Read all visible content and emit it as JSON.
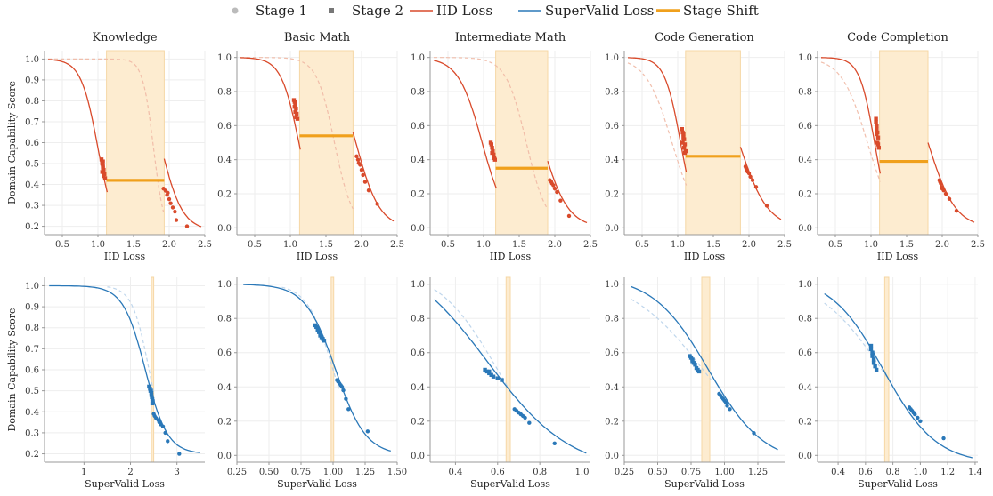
{
  "legend": [
    {
      "key": "stage1",
      "label": "Stage 1",
      "marker": "circle"
    },
    {
      "key": "stage2",
      "label": "Stage 2",
      "marker": "square"
    },
    {
      "key": "iid",
      "label": "IID Loss",
      "marker": "line"
    },
    {
      "key": "sv",
      "label": "SuperValid Loss",
      "marker": "line"
    },
    {
      "key": "shift",
      "label": "Stage Shift",
      "marker": "thickline"
    }
  ],
  "colors": {
    "iid": "#d94a2b",
    "iid_faint": "#f0b8a4",
    "sv": "#2a78b8",
    "sv_faint": "#b8d2ea",
    "shift": "#f0a01c",
    "band": "#fdecd0",
    "band_edge": "#f6d7a6",
    "stage_marker": "#bbbbbb",
    "stage2_marker": "#777777"
  },
  "chart_data": [
    {
      "type": "scatter",
      "title": "Knowledge",
      "xlabel": "IID Loss",
      "ylabel": "Domain Capability Score",
      "xlim": [
        0.25,
        2.5
      ],
      "ylim": [
        0.16,
        1.04
      ],
      "xticks": [
        0.5,
        1.0,
        1.5,
        2.0,
        2.5
      ],
      "xtick_labels": [
        "0.5",
        "1.0",
        "1.5",
        "2.0",
        "2.5"
      ],
      "yticks": [
        0.2,
        0.3,
        0.4,
        0.5,
        0.6,
        0.7,
        0.8,
        0.9,
        1.0
      ],
      "ytick_labels": [
        "0.2",
        "0.3",
        "0.4",
        "0.5",
        "0.6",
        "0.7",
        "0.8",
        "0.9",
        "1.0"
      ],
      "color": "iid",
      "faint_color": "iid_faint",
      "band": [
        1.12,
        1.93
      ],
      "shift": {
        "x": [
          1.12,
          1.93
        ],
        "y": 0.42
      },
      "curve1": {
        "x0": 0.3,
        "x1": 1.13,
        "lo": 0.15,
        "hi": 1.0,
        "mid": 1.0,
        "k": 8.4
      },
      "curve2": {
        "x0": 1.93,
        "x1": 2.45,
        "lo": 0.18,
        "hi": 1.0,
        "mid": 1.88,
        "k": 6.6
      },
      "ghost": {
        "x0": 0.3,
        "x1": 1.92,
        "lo": 0.15,
        "hi": 1.0,
        "mid": 1.78,
        "k": 13
      },
      "stage1": {
        "x": [
          1.92,
          1.95,
          1.97,
          1.98,
          2.0,
          2.02,
          2.05,
          2.08,
          2.1,
          2.25
        ],
        "y": [
          0.38,
          0.37,
          0.35,
          0.36,
          0.33,
          0.31,
          0.29,
          0.27,
          0.23,
          0.2
        ]
      },
      "stage2": {
        "x": [
          1.05,
          1.06,
          1.07,
          1.08,
          1.06,
          1.07,
          1.09,
          1.08,
          1.07,
          1.1
        ],
        "y": [
          0.52,
          0.5,
          0.49,
          0.47,
          0.46,
          0.48,
          0.45,
          0.44,
          0.51,
          0.43
        ]
      }
    },
    {
      "type": "scatter",
      "title": "Basic Math",
      "xlabel": "IID Loss",
      "ylabel": "",
      "xlim": [
        0.25,
        2.5
      ],
      "ylim": [
        -0.04,
        1.04
      ],
      "xticks": [
        0.5,
        1.0,
        1.5,
        2.0,
        2.5
      ],
      "xtick_labels": [
        "0.5",
        "1.0",
        "1.5",
        "2.0",
        "2.5"
      ],
      "yticks": [
        0.0,
        0.2,
        0.4,
        0.6,
        0.8,
        1.0
      ],
      "ytick_labels": [
        "0.0",
        "0.2",
        "0.4",
        "0.6",
        "0.8",
        "1.0"
      ],
      "color": "iid",
      "faint_color": "iid_faint",
      "band": [
        1.13,
        1.88
      ],
      "shift": {
        "x": [
          1.13,
          1.88
        ],
        "y": 0.54
      },
      "curve1": {
        "x0": 0.3,
        "x1": 1.14,
        "lo": 0.0,
        "hi": 1.0,
        "mid": 1.12,
        "k": 8.0
      },
      "curve2": {
        "x0": 1.88,
        "x1": 2.45,
        "lo": 0.0,
        "hi": 1.0,
        "mid": 1.92,
        "k": 6.0
      },
      "ghost": {
        "x0": 0.3,
        "x1": 1.88,
        "lo": 0.0,
        "hi": 1.0,
        "mid": 1.62,
        "k": 8.0
      },
      "stage1": {
        "x": [
          1.93,
          1.95,
          1.96,
          1.98,
          2.0,
          2.02,
          2.05,
          2.1,
          2.22
        ],
        "y": [
          0.42,
          0.4,
          0.38,
          0.37,
          0.34,
          0.31,
          0.27,
          0.22,
          0.14
        ]
      },
      "stage2": {
        "x": [
          1.05,
          1.06,
          1.07,
          1.07,
          1.08,
          1.06,
          1.09,
          1.08,
          1.07,
          1.1
        ],
        "y": [
          0.75,
          0.74,
          0.73,
          0.72,
          0.7,
          0.71,
          0.67,
          0.65,
          0.68,
          0.64
        ]
      }
    },
    {
      "type": "scatter",
      "title": "Intermediate Math",
      "xlabel": "IID Loss",
      "ylabel": "",
      "xlim": [
        0.25,
        2.5
      ],
      "ylim": [
        -0.04,
        1.04
      ],
      "xticks": [
        0.5,
        1.0,
        1.5,
        2.0,
        2.5
      ],
      "xtick_labels": [
        "0.5",
        "1.0",
        "1.5",
        "2.0",
        "2.5"
      ],
      "yticks": [
        0.0,
        0.2,
        0.4,
        0.6,
        0.8,
        1.0
      ],
      "ytick_labels": [
        "0.0",
        "0.2",
        "0.4",
        "0.6",
        "0.8",
        "1.0"
      ],
      "color": "iid",
      "faint_color": "iid_faint",
      "band": [
        1.17,
        1.9
      ],
      "shift": {
        "x": [
          1.17,
          1.9
        ],
        "y": 0.35
      },
      "curve1": {
        "x0": 0.3,
        "x1": 1.18,
        "lo": 0.0,
        "hi": 1.0,
        "mid": 0.98,
        "k": 6.0
      },
      "curve2": {
        "x0": 1.9,
        "x1": 2.45,
        "lo": 0.0,
        "hi": 1.0,
        "mid": 1.82,
        "k": 5.5
      },
      "ghost": {
        "x0": 0.3,
        "x1": 1.9,
        "lo": 0.0,
        "hi": 1.0,
        "mid": 1.6,
        "k": 7.0
      },
      "stage1": {
        "x": [
          1.93,
          1.95,
          1.96,
          1.98,
          2.0,
          2.03,
          2.08,
          2.2
        ],
        "y": [
          0.28,
          0.27,
          0.26,
          0.25,
          0.23,
          0.21,
          0.16,
          0.07
        ]
      },
      "stage2": {
        "x": [
          1.1,
          1.11,
          1.12,
          1.13,
          1.12,
          1.14,
          1.15,
          1.16
        ],
        "y": [
          0.5,
          0.49,
          0.47,
          0.45,
          0.44,
          0.43,
          0.41,
          0.4
        ]
      }
    },
    {
      "type": "scatter",
      "title": "Code Generation",
      "xlabel": "IID Loss",
      "ylabel": "",
      "xlim": [
        0.25,
        2.5
      ],
      "ylim": [
        -0.04,
        1.04
      ],
      "xticks": [
        0.5,
        1.0,
        1.5,
        2.0,
        2.5
      ],
      "xtick_labels": [
        "0.5",
        "1.0",
        "1.5",
        "2.0",
        "2.5"
      ],
      "yticks": [
        0.0,
        0.2,
        0.4,
        0.6,
        0.8,
        1.0
      ],
      "ytick_labels": [
        "0.0",
        "0.2",
        "0.4",
        "0.6",
        "0.8",
        "1.0"
      ],
      "color": "iid",
      "faint_color": "iid_faint",
      "band": [
        1.11,
        1.88
      ],
      "shift": {
        "x": [
          1.11,
          1.88
        ],
        "y": 0.42
      },
      "curve1": {
        "x0": 0.3,
        "x1": 1.12,
        "lo": 0.0,
        "hi": 1.0,
        "mid": 1.04,
        "k": 9.0
      },
      "curve2": {
        "x0": 1.88,
        "x1": 2.45,
        "lo": 0.0,
        "hi": 1.0,
        "mid": 1.86,
        "k": 5.0
      },
      "ghost": {
        "x0": 0.3,
        "x1": 1.12,
        "lo": 0.0,
        "hi": 1.0,
        "mid": 0.92,
        "k": 5.5
      },
      "stage1": {
        "x": [
          1.95,
          1.96,
          1.97,
          1.98,
          2.0,
          2.02,
          2.05,
          2.1,
          2.25
        ],
        "y": [
          0.36,
          0.35,
          0.34,
          0.33,
          0.32,
          0.3,
          0.28,
          0.24,
          0.13
        ]
      },
      "stage2": {
        "x": [
          1.06,
          1.07,
          1.08,
          1.08,
          1.09,
          1.07,
          1.1,
          1.09,
          1.11,
          1.1
        ],
        "y": [
          0.58,
          0.56,
          0.55,
          0.53,
          0.52,
          0.5,
          0.49,
          0.47,
          0.45,
          0.44
        ]
      }
    },
    {
      "type": "scatter",
      "title": "Code Completion",
      "xlabel": "IID Loss",
      "ylabel": "",
      "xlim": [
        0.25,
        2.5
      ],
      "ylim": [
        -0.04,
        1.04
      ],
      "xticks": [
        0.5,
        1.0,
        1.5,
        2.0,
        2.5
      ],
      "xtick_labels": [
        "0.5",
        "1.0",
        "1.5",
        "2.0",
        "2.5"
      ],
      "yticks": [
        0.0,
        0.2,
        0.4,
        0.6,
        0.8,
        1.0
      ],
      "ytick_labels": [
        "0.0",
        "0.2",
        "0.4",
        "0.6",
        "0.8",
        "1.0"
      ],
      "color": "iid",
      "faint_color": "iid_faint",
      "band": [
        1.12,
        1.8
      ],
      "shift": {
        "x": [
          1.12,
          1.8
        ],
        "y": 0.39
      },
      "curve1": {
        "x0": 0.3,
        "x1": 1.13,
        "lo": 0.0,
        "hi": 1.0,
        "mid": 1.05,
        "k": 9.5
      },
      "curve2": {
        "x0": 1.8,
        "x1": 2.45,
        "lo": 0.0,
        "hi": 1.0,
        "mid": 1.8,
        "k": 5.2
      },
      "ghost": {
        "x0": 0.3,
        "x1": 1.13,
        "lo": 0.0,
        "hi": 1.0,
        "mid": 0.95,
        "k": 5.5
      },
      "stage1": {
        "x": [
          1.96,
          1.97,
          1.98,
          1.99,
          2.0,
          2.02,
          2.05,
          2.1,
          2.2
        ],
        "y": [
          0.28,
          0.27,
          0.26,
          0.24,
          0.23,
          0.22,
          0.2,
          0.17,
          0.1
        ]
      },
      "stage2": {
        "x": [
          1.07,
          1.07,
          1.08,
          1.08,
          1.09,
          1.08,
          1.1,
          1.09,
          1.1,
          1.11
        ],
        "y": [
          0.64,
          0.62,
          0.6,
          0.58,
          0.56,
          0.55,
          0.53,
          0.5,
          0.49,
          0.47
        ]
      }
    },
    {
      "type": "scatter",
      "title": "",
      "xlabel": "SuperValid Loss",
      "ylabel": "Domain Capability Score",
      "xlim": [
        0.15,
        3.6
      ],
      "ylim": [
        0.16,
        1.04
      ],
      "xticks": [
        1,
        2,
        3
      ],
      "xtick_labels": [
        "1",
        "2",
        "3"
      ],
      "yticks": [
        0.2,
        0.3,
        0.4,
        0.5,
        0.6,
        0.7,
        0.8,
        0.9,
        1.0
      ],
      "ytick_labels": [
        "0.2",
        "0.3",
        "0.4",
        "0.5",
        "0.6",
        "0.7",
        "0.8",
        "0.9",
        "1.0"
      ],
      "color": "sv",
      "faint_color": "sv_faint",
      "band": [
        2.45,
        2.5
      ],
      "shift": null,
      "curve1": {
        "x0": 0.25,
        "x1": 3.5,
        "lo": 0.2,
        "hi": 1.0,
        "mid": 2.32,
        "k": 4.2
      },
      "curve2": null,
      "ghost": {
        "x0": 1.5,
        "x1": 2.5,
        "lo": 0.2,
        "hi": 1.0,
        "mid": 2.4,
        "k": 5.5
      },
      "stage1": {
        "x": [
          2.5,
          2.52,
          2.55,
          2.6,
          2.62,
          2.65,
          2.7,
          2.75,
          2.8,
          3.05
        ],
        "y": [
          0.39,
          0.38,
          0.37,
          0.36,
          0.35,
          0.34,
          0.33,
          0.3,
          0.26,
          0.2
        ]
      },
      "stage2": {
        "x": [
          2.4,
          2.42,
          2.43,
          2.44,
          2.45,
          2.45,
          2.46,
          2.47,
          2.48,
          2.47
        ],
        "y": [
          0.52,
          0.51,
          0.5,
          0.5,
          0.49,
          0.48,
          0.47,
          0.46,
          0.45,
          0.44
        ]
      }
    },
    {
      "type": "scatter",
      "title": "",
      "xlabel": "SuperValid Loss",
      "ylabel": "",
      "xlim": [
        0.25,
        1.5
      ],
      "ylim": [
        -0.04,
        1.04
      ],
      "xticks": [
        0.25,
        0.5,
        0.75,
        1.0,
        1.25,
        1.5
      ],
      "xtick_labels": [
        "0.25",
        "0.50",
        "0.75",
        "1.00",
        "1.25",
        "1.50"
      ],
      "yticks": [
        0.0,
        0.2,
        0.4,
        0.6,
        0.8,
        1.0
      ],
      "ytick_labels": [
        "0.0",
        "0.2",
        "0.4",
        "0.6",
        "0.8",
        "1.0"
      ],
      "color": "sv",
      "faint_color": "sv_faint",
      "band": [
        0.985,
        1.005
      ],
      "shift": null,
      "curve1": {
        "x0": 0.3,
        "x1": 1.45,
        "lo": 0.0,
        "hi": 1.0,
        "mid": 1.02,
        "k": 8.5
      },
      "curve2": null,
      "ghost": {
        "x0": 0.6,
        "x1": 1.05,
        "lo": 0.0,
        "hi": 1.0,
        "mid": 1.0,
        "k": 10
      },
      "stage1": {
        "x": [
          1.03,
          1.04,
          1.05,
          1.06,
          1.07,
          1.08,
          1.1,
          1.12,
          1.27
        ],
        "y": [
          0.44,
          0.43,
          0.42,
          0.41,
          0.4,
          0.38,
          0.33,
          0.27,
          0.14
        ]
      },
      "stage2": {
        "x": [
          0.86,
          0.87,
          0.88,
          0.88,
          0.89,
          0.9,
          0.9,
          0.91,
          0.92,
          0.93
        ],
        "y": [
          0.76,
          0.75,
          0.74,
          0.73,
          0.72,
          0.71,
          0.7,
          0.69,
          0.68,
          0.67
        ]
      }
    },
    {
      "type": "scatter",
      "title": "",
      "xlabel": "SuperValid Loss",
      "ylabel": "",
      "xlim": [
        0.28,
        1.04
      ],
      "ylim": [
        -0.04,
        1.04
      ],
      "xticks": [
        0.4,
        0.6,
        0.8,
        1.0
      ],
      "xtick_labels": [
        "0.4",
        "0.6",
        "0.8",
        "1.0"
      ],
      "yticks": [
        0.0,
        0.2,
        0.4,
        0.6,
        0.8,
        1.0
      ],
      "ytick_labels": [
        "0.0",
        "0.2",
        "0.4",
        "0.6",
        "0.8",
        "1.0"
      ],
      "color": "sv",
      "faint_color": "sv_faint",
      "band": [
        0.64,
        0.66
      ],
      "shift": null,
      "curve1": {
        "x0": 0.3,
        "x1": 1.02,
        "lo": -0.1,
        "hi": 1.2,
        "mid": 0.55,
        "k": 5.0
      },
      "curve2": null,
      "ghost": {
        "x0": 0.3,
        "x1": 0.66,
        "lo": -0.1,
        "hi": 1.1,
        "mid": 0.6,
        "k": 7.0
      },
      "stage1": {
        "x": [
          0.68,
          0.69,
          0.7,
          0.71,
          0.72,
          0.73,
          0.75,
          0.87
        ],
        "y": [
          0.27,
          0.26,
          0.25,
          0.24,
          0.23,
          0.22,
          0.19,
          0.07
        ]
      },
      "stage2": {
        "x": [
          0.54,
          0.55,
          0.56,
          0.56,
          0.57,
          0.58,
          0.6,
          0.62
        ],
        "y": [
          0.5,
          0.49,
          0.49,
          0.48,
          0.47,
          0.46,
          0.45,
          0.44
        ]
      }
    },
    {
      "type": "scatter",
      "title": "",
      "xlabel": "SuperValid Loss",
      "ylabel": "",
      "xlim": [
        0.25,
        1.45
      ],
      "ylim": [
        -0.04,
        1.04
      ],
      "xticks": [
        0.25,
        0.5,
        0.75,
        1.0,
        1.25
      ],
      "xtick_labels": [
        "0.25",
        "0.50",
        "0.75",
        "1.00",
        "1.25"
      ],
      "yticks": [
        0.0,
        0.2,
        0.4,
        0.6,
        0.8,
        1.0
      ],
      "ytick_labels": [
        "0.0",
        "0.2",
        "0.4",
        "0.6",
        "0.8",
        "1.0"
      ],
      "color": "sv",
      "faint_color": "sv_faint",
      "band": [
        0.83,
        0.89
      ],
      "shift": null,
      "curve1": {
        "x0": 0.3,
        "x1": 1.4,
        "lo": -0.05,
        "hi": 1.05,
        "mid": 0.88,
        "k": 4.8
      },
      "curve2": null,
      "ghost": {
        "x0": 0.3,
        "x1": 0.9,
        "lo": -0.05,
        "hi": 1.05,
        "mid": 0.84,
        "k": 3.6
      },
      "stage1": {
        "x": [
          0.96,
          0.97,
          0.98,
          0.99,
          1.0,
          1.01,
          1.02,
          1.04,
          1.22
        ],
        "y": [
          0.36,
          0.35,
          0.34,
          0.33,
          0.32,
          0.31,
          0.29,
          0.27,
          0.13
        ]
      },
      "stage2": {
        "x": [
          0.74,
          0.75,
          0.76,
          0.76,
          0.77,
          0.78,
          0.79,
          0.8,
          0.81
        ],
        "y": [
          0.58,
          0.57,
          0.56,
          0.55,
          0.54,
          0.53,
          0.51,
          0.5,
          0.49
        ]
      }
    },
    {
      "type": "scatter",
      "title": "",
      "xlabel": "SuperValid Loss",
      "ylabel": "",
      "xlim": [
        0.25,
        1.42
      ],
      "ylim": [
        -0.04,
        1.04
      ],
      "xticks": [
        0.4,
        0.6,
        0.8,
        1.0,
        1.2,
        1.4
      ],
      "xtick_labels": [
        "0.4",
        "0.6",
        "0.8",
        "1.0",
        "1.2",
        "1.4"
      ],
      "yticks": [
        0.0,
        0.2,
        0.4,
        0.6,
        0.8,
        1.0
      ],
      "ytick_labels": [
        "0.0",
        "0.2",
        "0.4",
        "0.6",
        "0.8",
        "1.0"
      ],
      "color": "sv",
      "faint_color": "sv_faint",
      "band": [
        0.74,
        0.77
      ],
      "shift": null,
      "curve1": {
        "x0": 0.3,
        "x1": 1.38,
        "lo": -0.05,
        "hi": 1.05,
        "mid": 0.73,
        "k": 5.2
      },
      "curve2": null,
      "ghost": {
        "x0": 0.3,
        "x1": 0.78,
        "lo": -0.05,
        "hi": 1.05,
        "mid": 0.72,
        "k": 4.2
      },
      "stage1": {
        "x": [
          0.92,
          0.93,
          0.94,
          0.95,
          0.96,
          0.98,
          1.0,
          1.17
        ],
        "y": [
          0.28,
          0.27,
          0.26,
          0.25,
          0.24,
          0.22,
          0.2,
          0.1
        ]
      },
      "stage2": {
        "x": [
          0.64,
          0.64,
          0.65,
          0.65,
          0.66,
          0.66,
          0.67,
          0.68
        ],
        "y": [
          0.64,
          0.62,
          0.6,
          0.58,
          0.56,
          0.54,
          0.52,
          0.5
        ]
      }
    }
  ]
}
